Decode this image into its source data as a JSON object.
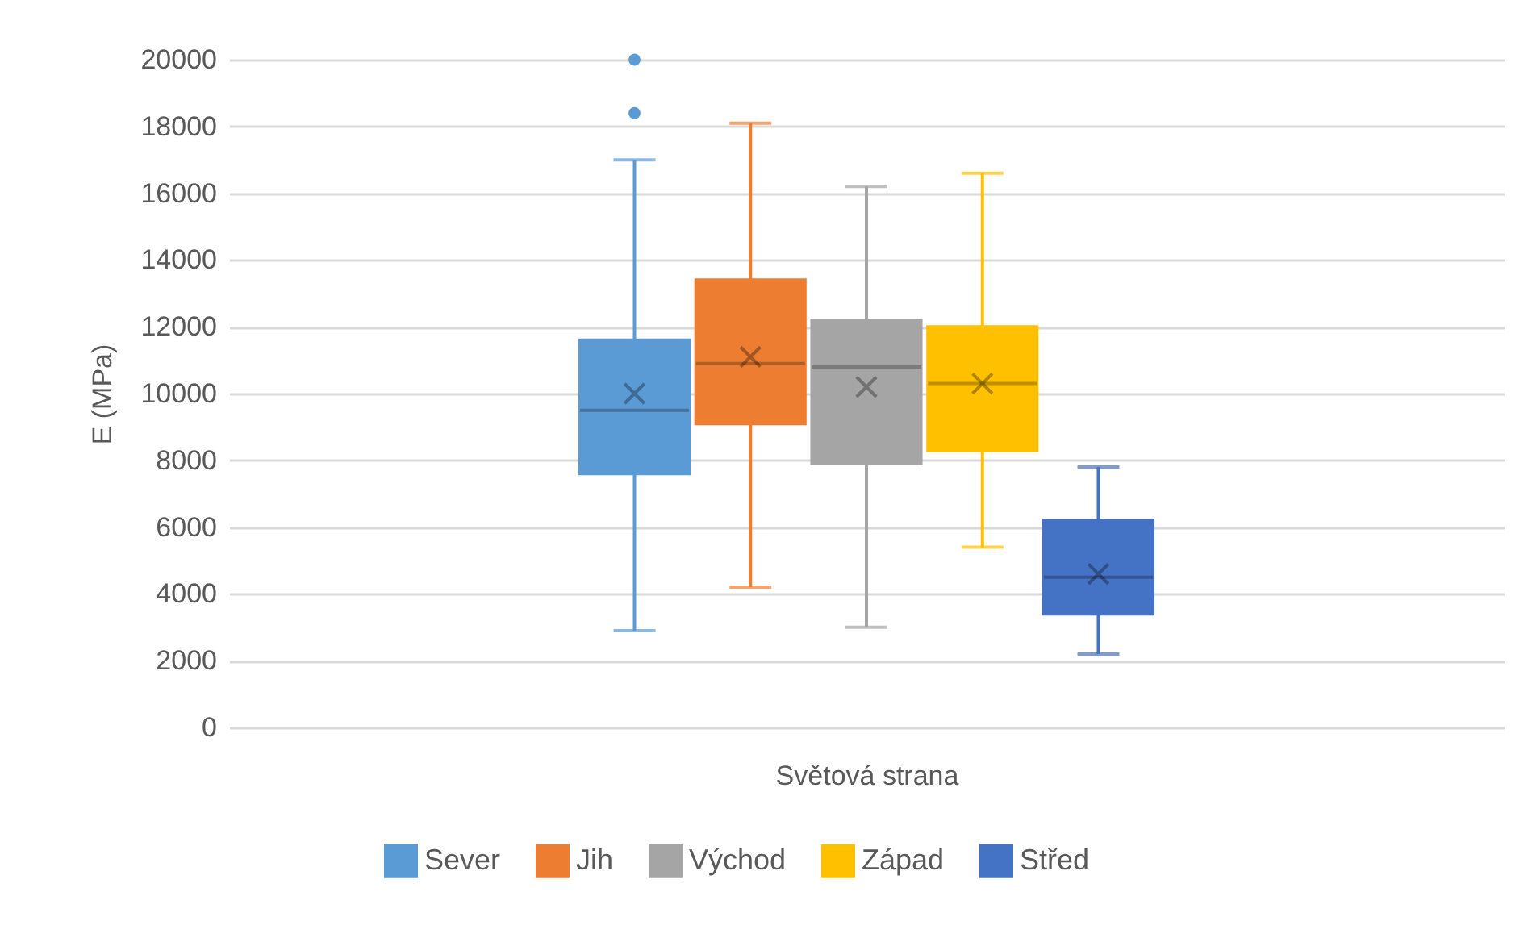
{
  "chart_data": {
    "type": "box",
    "xlabel": "Světová strana",
    "ylabel": "E  (MPa)",
    "categories": [
      null
    ],
    "series": [
      {
        "name": "Sever",
        "color": "#5b9bd5",
        "boxes": [
          {
            "low": 2900,
            "q1": 7600,
            "median": 9500,
            "q3": 11600,
            "high": 17000,
            "mean": 10000,
            "outliers": [
              18400,
              20000
            ]
          }
        ]
      },
      {
        "name": "Jih",
        "color": "#ed7d31",
        "boxes": [
          {
            "low": 4200,
            "q1": 9100,
            "median": 10900,
            "q3": 13400,
            "high": 18100,
            "mean": 11100
          }
        ]
      },
      {
        "name": "Východ",
        "color": "#a5a5a5",
        "boxes": [
          {
            "low": 3000,
            "q1": 7900,
            "median": 10800,
            "q3": 12200,
            "high": 16200,
            "mean": 10200
          }
        ]
      },
      {
        "name": "Západ",
        "color": "#ffc000",
        "boxes": [
          {
            "low": 5400,
            "q1": 8300,
            "median": 10300,
            "q3": 12000,
            "high": 16600,
            "mean": 10300
          }
        ]
      },
      {
        "name": "Střed",
        "color": "#4472c4",
        "boxes": [
          {
            "low": 2200,
            "q1": 3400,
            "median": 4500,
            "q3": 6200,
            "high": 7800,
            "mean": 4600
          }
        ]
      }
    ],
    "ylim": [
      0,
      20000
    ],
    "yticks": [
      0,
      2000,
      4000,
      6000,
      8000,
      10000,
      12000,
      14000,
      16000,
      18000,
      20000
    ],
    "grid": "y",
    "legend": "bottom"
  }
}
